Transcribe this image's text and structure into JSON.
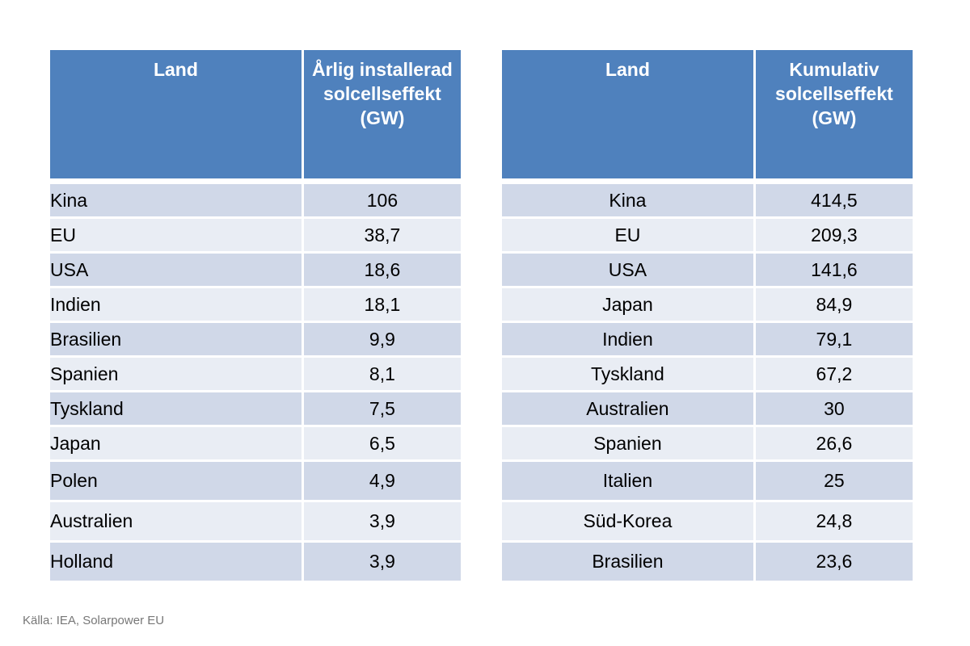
{
  "left_table": {
    "headers": [
      "Land",
      "Årlig installerad solcellseffekt (GW)"
    ],
    "rows": [
      [
        "Kina",
        "106"
      ],
      [
        "EU",
        "38,7"
      ],
      [
        "USA",
        "18,6"
      ],
      [
        "Indien",
        "18,1"
      ],
      [
        "Brasilien",
        "9,9"
      ],
      [
        "Spanien",
        "8,1"
      ],
      [
        "Tyskland",
        "7,5"
      ],
      [
        "Japan",
        "6,5"
      ],
      [
        "Polen",
        "4,9"
      ],
      [
        "Australien",
        "3,9"
      ],
      [
        "Holland",
        "3,9"
      ]
    ]
  },
  "right_table": {
    "headers": [
      "Land",
      "Kumulativ solcellseffekt (GW)"
    ],
    "rows": [
      [
        "Kina",
        "414,5"
      ],
      [
        "EU",
        "209,3"
      ],
      [
        "USA",
        "141,6"
      ],
      [
        "Japan",
        "84,9"
      ],
      [
        "Indien",
        "79,1"
      ],
      [
        "Tyskland",
        "67,2"
      ],
      [
        "Australien",
        "30"
      ],
      [
        "Spanien",
        "26,6"
      ],
      [
        "Italien",
        "25"
      ],
      [
        "Süd-Korea",
        "24,8"
      ],
      [
        "Brasilien",
        "23,6"
      ]
    ]
  },
  "source": "Källa: IEA, Solarpower EU",
  "colors": {
    "header_bg": "#4f81bd",
    "row_odd": "#d0d8e8",
    "row_even": "#e9edf4",
    "source_text": "#777777"
  }
}
